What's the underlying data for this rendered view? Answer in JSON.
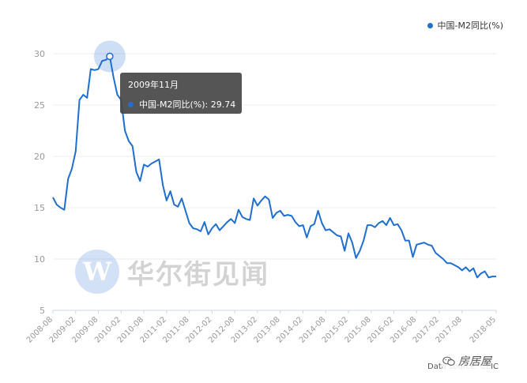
{
  "chart_data": {
    "type": "line",
    "series": [
      {
        "name": "中国-M2同比(%)",
        "x": [
          "2008-08",
          "2008-09",
          "2008-10",
          "2008-11",
          "2008-12",
          "2009-01",
          "2009-02",
          "2009-03",
          "2009-04",
          "2009-05",
          "2009-06",
          "2009-07",
          "2009-08",
          "2009-09",
          "2009-10",
          "2009-11",
          "2009-12",
          "2010-01",
          "2010-02",
          "2010-03",
          "2010-04",
          "2010-05",
          "2010-06",
          "2010-07",
          "2010-08",
          "2010-09",
          "2010-10",
          "2010-11",
          "2010-12",
          "2011-01",
          "2011-02",
          "2011-03",
          "2011-04",
          "2011-05",
          "2011-06",
          "2011-07",
          "2011-08",
          "2011-09",
          "2011-10",
          "2011-11",
          "2011-12",
          "2012-01",
          "2012-02",
          "2012-03",
          "2012-04",
          "2012-05",
          "2012-06",
          "2012-07",
          "2012-08",
          "2012-09",
          "2012-10",
          "2012-11",
          "2012-12",
          "2013-01",
          "2013-02",
          "2013-03",
          "2013-04",
          "2013-05",
          "2013-06",
          "2013-07",
          "2013-08",
          "2013-09",
          "2013-10",
          "2013-11",
          "2013-12",
          "2014-01",
          "2014-02",
          "2014-03",
          "2014-04",
          "2014-05",
          "2014-06",
          "2014-07",
          "2014-08",
          "2014-09",
          "2014-10",
          "2014-11",
          "2014-12",
          "2015-01",
          "2015-02",
          "2015-03",
          "2015-04",
          "2015-05",
          "2015-06",
          "2015-07",
          "2015-08",
          "2015-09",
          "2015-10",
          "2015-11",
          "2015-12",
          "2016-01",
          "2016-02",
          "2016-03",
          "2016-04",
          "2016-05",
          "2016-06",
          "2016-07",
          "2016-08",
          "2016-09",
          "2016-10",
          "2016-11",
          "2016-12",
          "2017-01",
          "2017-02",
          "2017-03",
          "2017-04",
          "2017-05",
          "2017-06",
          "2017-07",
          "2017-08",
          "2017-09",
          "2017-10",
          "2017-11",
          "2017-12",
          "2018-01",
          "2018-02",
          "2018-03",
          "2018-04",
          "2018-05"
        ],
        "values": [
          16.0,
          15.3,
          15.0,
          14.8,
          17.8,
          18.8,
          20.5,
          25.5,
          26.0,
          25.7,
          28.5,
          28.4,
          28.5,
          29.3,
          29.4,
          29.74,
          27.7,
          26.0,
          25.5,
          22.5,
          21.5,
          21.0,
          18.5,
          17.6,
          19.2,
          19.0,
          19.3,
          19.5,
          19.7,
          17.2,
          15.7,
          16.6,
          15.3,
          15.1,
          15.9,
          14.7,
          13.5,
          13.0,
          12.9,
          12.7,
          13.6,
          12.4,
          13.0,
          13.4,
          12.8,
          13.2,
          13.6,
          13.9,
          13.5,
          14.8,
          14.1,
          13.9,
          13.8,
          15.9,
          15.2,
          15.7,
          16.1,
          15.8,
          14.0,
          14.5,
          14.7,
          14.2,
          14.3,
          14.2,
          13.6,
          13.2,
          13.3,
          12.1,
          13.2,
          13.4,
          14.7,
          13.5,
          12.8,
          12.9,
          12.6,
          12.3,
          12.2,
          10.8,
          12.5,
          11.6,
          10.1,
          10.8,
          11.8,
          13.3,
          13.3,
          13.1,
          13.5,
          13.7,
          13.3,
          14.0,
          13.3,
          13.4,
          12.8,
          11.8,
          11.8,
          10.2,
          11.4,
          11.5,
          11.6,
          11.4,
          11.3,
          10.6,
          10.3,
          10.0,
          9.6,
          9.6,
          9.4,
          9.2,
          8.9,
          9.2,
          8.8,
          9.1,
          8.2,
          8.6,
          8.8,
          8.2,
          8.3,
          8.3
        ]
      }
    ],
    "x_ticks": [
      "2008-08",
      "2009-02",
      "2009-08",
      "2010-02",
      "2010-08",
      "2011-02",
      "2011-08",
      "2012-02",
      "2012-08",
      "2013-02",
      "2013-08",
      "2014-02",
      "2014-08",
      "2015-02",
      "2015-08",
      "2016-02",
      "2016-08",
      "2017-02",
      "2017-08",
      "2018-05"
    ],
    "y_ticks": [
      5,
      10,
      15,
      20,
      25,
      30
    ],
    "ylim": [
      5,
      31
    ],
    "grid": "horizontal",
    "legend_position": "top-right",
    "line_color": "#1f6fd1",
    "highlight_index": 15,
    "tooltip": {
      "date": "2009年11月",
      "text": "中国-M2同比(%): 29.74"
    },
    "source": "Data source: CEIC"
  },
  "watermark": {
    "logo_letter": "W",
    "text": "华尔街见闻"
  },
  "brand": {
    "icon": "wechat-icon",
    "text": "房居屋"
  }
}
